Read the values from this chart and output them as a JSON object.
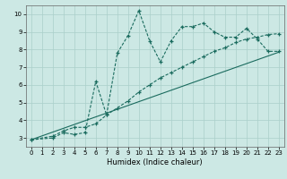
{
  "xlabel": "Humidex (Indice chaleur)",
  "background_color": "#cce8e4",
  "grid_color": "#aacfca",
  "line_color": "#1a6b5e",
  "xlim": [
    -0.5,
    23.5
  ],
  "ylim": [
    2.5,
    10.5
  ],
  "xticks": [
    0,
    1,
    2,
    3,
    4,
    5,
    6,
    7,
    8,
    9,
    10,
    11,
    12,
    13,
    14,
    15,
    16,
    17,
    18,
    19,
    20,
    21,
    22,
    23
  ],
  "yticks": [
    3,
    4,
    5,
    6,
    7,
    8,
    9,
    10
  ],
  "series1_x": [
    0,
    2,
    3,
    4,
    5,
    6,
    7,
    8,
    9,
    10,
    11,
    12,
    13,
    14,
    15,
    16,
    17,
    18,
    19,
    20,
    21,
    22,
    23
  ],
  "series1_y": [
    2.9,
    3.0,
    3.3,
    3.2,
    3.3,
    6.2,
    4.3,
    7.8,
    8.8,
    10.2,
    8.5,
    7.3,
    8.5,
    9.3,
    9.3,
    9.5,
    9.0,
    8.7,
    8.7,
    9.2,
    8.6,
    7.9,
    7.9
  ],
  "series2_x": [
    0,
    2,
    3,
    4,
    5,
    6,
    7,
    8,
    9,
    10,
    11,
    12,
    13,
    14,
    15,
    16,
    17,
    18,
    19,
    20,
    21,
    22,
    23
  ],
  "series2_y": [
    2.9,
    3.1,
    3.4,
    3.6,
    3.6,
    3.8,
    4.3,
    4.7,
    5.1,
    5.6,
    6.0,
    6.4,
    6.7,
    7.0,
    7.3,
    7.6,
    7.9,
    8.1,
    8.4,
    8.6,
    8.7,
    8.85,
    8.9
  ],
  "series3_x": [
    0,
    23
  ],
  "series3_y": [
    2.9,
    7.85
  ]
}
